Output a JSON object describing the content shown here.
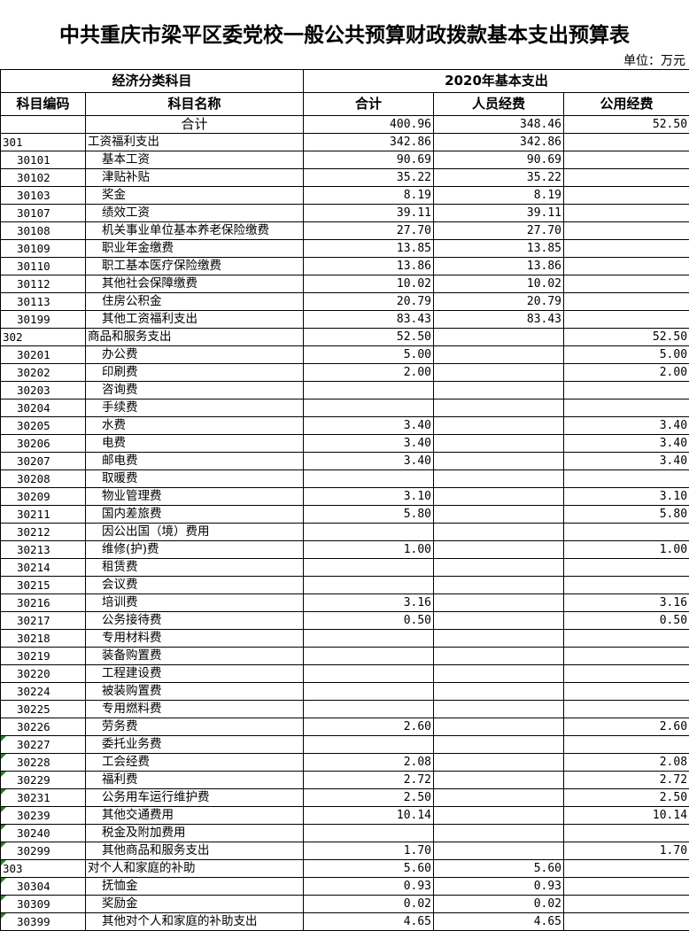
{
  "title": "中共重庆市梁平区委党校一般公共预算财政拨款基本支出预算表",
  "unit": "单位：万元",
  "header": {
    "group1": "经济分类科目",
    "group2": "2020年基本支出",
    "columns": [
      "科目编码",
      "科目名称",
      "合计",
      "人员经费",
      "公用经费"
    ]
  },
  "total_row": {
    "label": "合计",
    "total": "400.96",
    "personnel": "348.46",
    "public": "52.50"
  },
  "rows": [
    {
      "code": "301",
      "name": "工资福利支出",
      "total": "342.86",
      "personnel": "342.86",
      "public": "",
      "level": 1
    },
    {
      "code": "30101",
      "name": "基本工资",
      "total": "90.69",
      "personnel": "90.69",
      "public": "",
      "level": 2
    },
    {
      "code": "30102",
      "name": "津贴补贴",
      "total": "35.22",
      "personnel": "35.22",
      "public": "",
      "level": 2
    },
    {
      "code": "30103",
      "name": "奖金",
      "total": "8.19",
      "personnel": "8.19",
      "public": "",
      "level": 2
    },
    {
      "code": "30107",
      "name": "绩效工资",
      "total": "39.11",
      "personnel": "39.11",
      "public": "",
      "level": 2
    },
    {
      "code": "30108",
      "name": "机关事业单位基本养老保险缴费",
      "total": "27.70",
      "personnel": "27.70",
      "public": "",
      "level": 2
    },
    {
      "code": "30109",
      "name": "职业年金缴费",
      "total": "13.85",
      "personnel": "13.85",
      "public": "",
      "level": 2
    },
    {
      "code": "30110",
      "name": "职工基本医疗保险缴费",
      "total": "13.86",
      "personnel": "13.86",
      "public": "",
      "level": 2
    },
    {
      "code": "30112",
      "name": "其他社会保障缴费",
      "total": "10.02",
      "personnel": "10.02",
      "public": "",
      "level": 2
    },
    {
      "code": "30113",
      "name": "住房公积金",
      "total": "20.79",
      "personnel": "20.79",
      "public": "",
      "level": 2
    },
    {
      "code": "30199",
      "name": "其他工资福利支出",
      "total": "83.43",
      "personnel": "83.43",
      "public": "",
      "level": 2
    },
    {
      "code": "302",
      "name": "商品和服务支出",
      "total": "52.50",
      "personnel": "",
      "public": "52.50",
      "level": 1
    },
    {
      "code": "30201",
      "name": "办公费",
      "total": "5.00",
      "personnel": "",
      "public": "5.00",
      "level": 2
    },
    {
      "code": "30202",
      "name": "印刷费",
      "total": "2.00",
      "personnel": "",
      "public": "2.00",
      "level": 2
    },
    {
      "code": "30203",
      "name": "咨询费",
      "total": "",
      "personnel": "",
      "public": "",
      "level": 2
    },
    {
      "code": "30204",
      "name": "手续费",
      "total": "",
      "personnel": "",
      "public": "",
      "level": 2
    },
    {
      "code": "30205",
      "name": "水费",
      "total": "3.40",
      "personnel": "",
      "public": "3.40",
      "level": 2
    },
    {
      "code": "30206",
      "name": "电费",
      "total": "3.40",
      "personnel": "",
      "public": "3.40",
      "level": 2
    },
    {
      "code": "30207",
      "name": "邮电费",
      "total": "3.40",
      "personnel": "",
      "public": "3.40",
      "level": 2
    },
    {
      "code": "30208",
      "name": "取暖费",
      "total": "",
      "personnel": "",
      "public": "",
      "level": 2
    },
    {
      "code": "30209",
      "name": "物业管理费",
      "total": "3.10",
      "personnel": "",
      "public": "3.10",
      "level": 2
    },
    {
      "code": "30211",
      "name": "国内差旅费",
      "total": "5.80",
      "personnel": "",
      "public": "5.80",
      "level": 2
    },
    {
      "code": "30212",
      "name": "因公出国（境）费用",
      "total": "",
      "personnel": "",
      "public": "",
      "level": 2
    },
    {
      "code": "30213",
      "name": "维修(护)费",
      "total": "1.00",
      "personnel": "",
      "public": "1.00",
      "level": 2
    },
    {
      "code": "30214",
      "name": "租赁费",
      "total": "",
      "personnel": "",
      "public": "",
      "level": 2
    },
    {
      "code": "30215",
      "name": "会议费",
      "total": "",
      "personnel": "",
      "public": "",
      "level": 2
    },
    {
      "code": "30216",
      "name": "培训费",
      "total": "3.16",
      "personnel": "",
      "public": "3.16",
      "level": 2
    },
    {
      "code": "30217",
      "name": "公务接待费",
      "total": "0.50",
      "personnel": "",
      "public": "0.50",
      "level": 2
    },
    {
      "code": "30218",
      "name": "专用材料费",
      "total": "",
      "personnel": "",
      "public": "",
      "level": 2
    },
    {
      "code": "30219",
      "name": "装备购置费",
      "total": "",
      "personnel": "",
      "public": "",
      "level": 2
    },
    {
      "code": "30220",
      "name": "工程建设费",
      "total": "",
      "personnel": "",
      "public": "",
      "level": 2
    },
    {
      "code": "30224",
      "name": "被装购置费",
      "total": "",
      "personnel": "",
      "public": "",
      "level": 2
    },
    {
      "code": "30225",
      "name": "专用燃料费",
      "total": "",
      "personnel": "",
      "public": "",
      "level": 2
    },
    {
      "code": "30226",
      "name": "劳务费",
      "total": "2.60",
      "personnel": "",
      "public": "2.60",
      "level": 2
    },
    {
      "code": "30227",
      "name": "委托业务费",
      "total": "",
      "personnel": "",
      "public": "",
      "level": 2,
      "flag": true
    },
    {
      "code": "30228",
      "name": "工会经费",
      "total": "2.08",
      "personnel": "",
      "public": "2.08",
      "level": 2,
      "flag": true
    },
    {
      "code": "30229",
      "name": "福利费",
      "total": "2.72",
      "personnel": "",
      "public": "2.72",
      "level": 2,
      "flag": true
    },
    {
      "code": "30231",
      "name": "公务用车运行维护费",
      "total": "2.50",
      "personnel": "",
      "public": "2.50",
      "level": 2,
      "flag": true
    },
    {
      "code": "30239",
      "name": "其他交通费用",
      "total": "10.14",
      "personnel": "",
      "public": "10.14",
      "level": 2,
      "flag": true
    },
    {
      "code": "30240",
      "name": "税金及附加费用",
      "total": "",
      "personnel": "",
      "public": "",
      "level": 2,
      "flag": true
    },
    {
      "code": "30299",
      "name": "其他商品和服务支出",
      "total": "1.70",
      "personnel": "",
      "public": "1.70",
      "level": 2,
      "flag": true
    },
    {
      "code": "303",
      "name": "对个人和家庭的补助",
      "total": "5.60",
      "personnel": "5.60",
      "public": "",
      "level": 1,
      "flag": true
    },
    {
      "code": "30304",
      "name": "抚恤金",
      "total": "0.93",
      "personnel": "0.93",
      "public": "",
      "level": 2,
      "flag": true
    },
    {
      "code": "30309",
      "name": "奖励金",
      "total": "0.02",
      "personnel": "0.02",
      "public": "",
      "level": 2,
      "flag": true
    },
    {
      "code": "30399",
      "name": "其他对个人和家庭的补助支出",
      "total": "4.65",
      "personnel": "4.65",
      "public": "",
      "level": 2,
      "flag": true
    }
  ],
  "colors": {
    "flag_triangle": "#1a8a1a"
  }
}
